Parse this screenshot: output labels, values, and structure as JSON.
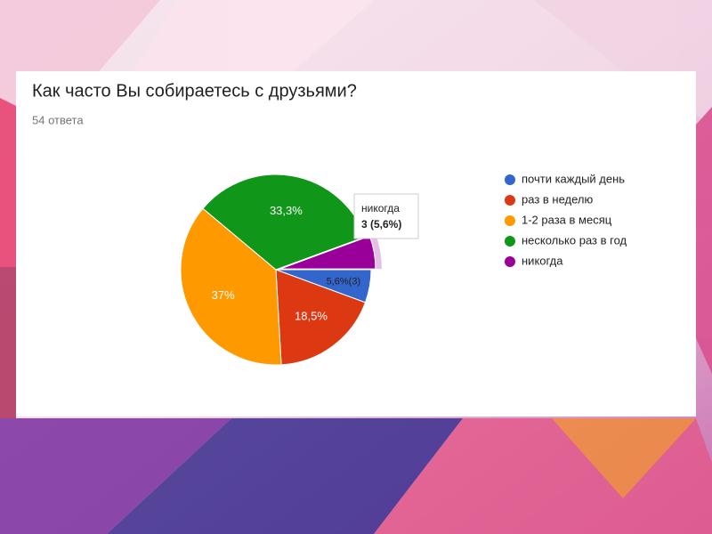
{
  "chart_data": {
    "type": "pie",
    "title": "Как часто Вы собираетесь с друзьями?",
    "subtitle": "54 ответа",
    "categories": [
      "почти каждый день",
      "раз в неделю",
      "1-2 раза в месяц",
      "несколько раз в год",
      "никогда"
    ],
    "values": [
      5.6,
      18.5,
      37,
      33.3,
      5.6
    ],
    "value_labels": [
      "5,6%(3)",
      "18,5%",
      "37%",
      "33,3%",
      null
    ],
    "colors": [
      "#3366cc",
      "#dc3912",
      "#ff9900",
      "#109618",
      "#990099"
    ],
    "legend": "right",
    "tooltip": {
      "category": 4,
      "text": "3 (5,6%)"
    }
  }
}
